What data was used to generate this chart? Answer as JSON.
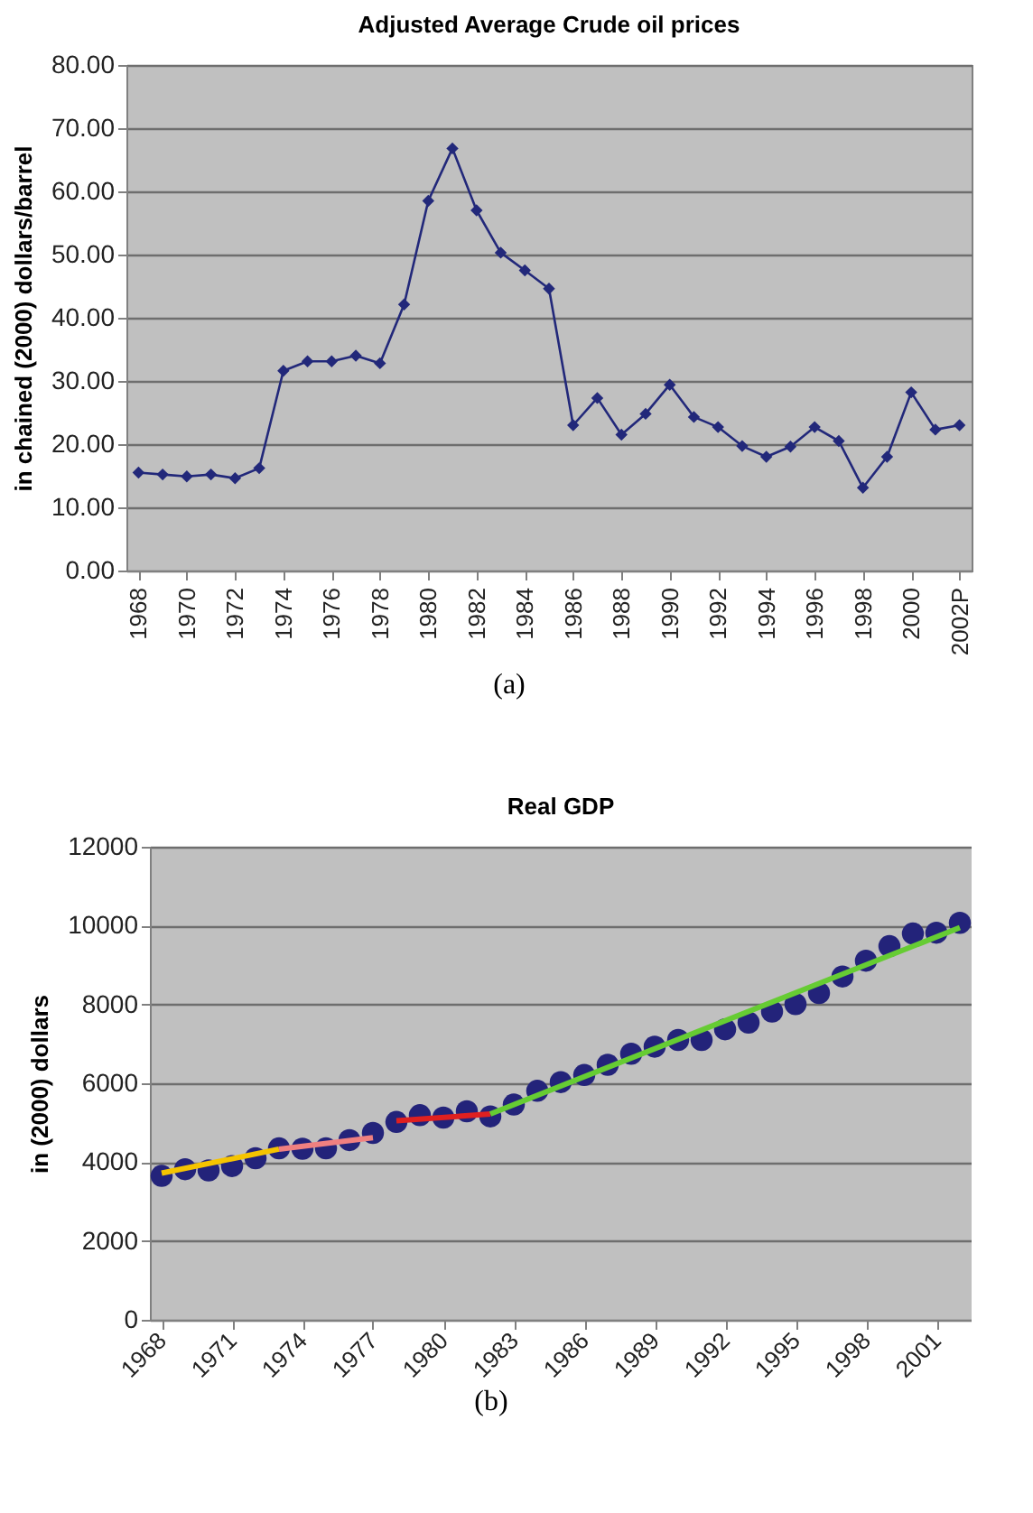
{
  "chart_data": [
    {
      "type": "line",
      "title": "Adjusted Average Crude oil prices",
      "ylabel": "in chained (2000) dollars/barrel",
      "annotations": [
        "(a)"
      ],
      "x": [
        1968,
        1969,
        1970,
        1971,
        1972,
        1973,
        1974,
        1975,
        1976,
        1977,
        1978,
        1979,
        1980,
        1981,
        1982,
        1983,
        1984,
        1985,
        1986,
        1987,
        1988,
        1989,
        1990,
        1991,
        1992,
        1993,
        1994,
        1995,
        1996,
        1997,
        1998,
        1999,
        2000,
        2001,
        2002
      ],
      "series": [
        {
          "color": "#22287a",
          "values": [
            15.5,
            15.2,
            14.9,
            15.2,
            14.6,
            16.2,
            31.6,
            33.1,
            33.1,
            34.0,
            32.8,
            42.1,
            58.5,
            66.8,
            57.0,
            50.3,
            47.5,
            44.6,
            23.0,
            27.3,
            21.5,
            24.8,
            29.4,
            24.3,
            22.7,
            19.7,
            18.0,
            19.6,
            22.7,
            20.5,
            13.1,
            18.0,
            28.2,
            22.3,
            23.0
          ]
        }
      ],
      "marker": "diamond",
      "grid": "y",
      "xlim": [
        1967.5,
        2002.5
      ],
      "xticks": [
        1968,
        1970,
        1972,
        1974,
        1976,
        1978,
        1980,
        1982,
        1984,
        1986,
        1988,
        1990,
        1992,
        1994,
        1996,
        1998,
        2000,
        {
          "value": 2002,
          "label": "2002P"
        }
      ],
      "ylim": [
        0,
        80
      ],
      "yticks": [
        {
          "value": 0,
          "label": "0.00"
        },
        {
          "value": 10,
          "label": "10.00"
        },
        {
          "value": 20,
          "label": "20.00"
        },
        {
          "value": 30,
          "label": "30.00"
        },
        {
          "value": 40,
          "label": "40.00"
        },
        {
          "value": 50,
          "label": "50.00"
        },
        {
          "value": 60,
          "label": "60.00"
        },
        {
          "value": 70,
          "label": "70.00"
        },
        {
          "value": 80,
          "label": "80.00"
        }
      ]
    },
    {
      "type": "scatter",
      "title": "Real GDP",
      "ylabel": "in (2000) dollars",
      "annotations": [
        "(b)"
      ],
      "x": [
        1968,
        1969,
        1970,
        1971,
        1972,
        1973,
        1974,
        1975,
        1976,
        1977,
        1978,
        1979,
        1980,
        1981,
        1982,
        1983,
        1984,
        1985,
        1986,
        1987,
        1988,
        1989,
        1990,
        1991,
        1992,
        1993,
        1994,
        1995,
        1996,
        1997,
        1998,
        1999,
        2000,
        2001,
        2002
      ],
      "series": [
        {
          "color": "#23237a",
          "marker": "circle",
          "values": [
            3650,
            3820,
            3790,
            3900,
            4100,
            4350,
            4340,
            4350,
            4560,
            4740,
            5020,
            5190,
            5130,
            5290,
            5160,
            5460,
            5810,
            6030,
            6210,
            6470,
            6750,
            6930,
            7100,
            7100,
            7370,
            7540,
            7820,
            8010,
            8290,
            8710,
            9110,
            9480,
            9800,
            9820,
            10070
          ]
        },
        {
          "type": "line",
          "color": "#f5c400",
          "marker": "none",
          "x": [
            1968,
            1973
          ],
          "values": [
            3720,
            4330
          ]
        },
        {
          "type": "line",
          "color": "#f08080",
          "marker": "none",
          "x": [
            1973,
            1977
          ],
          "values": [
            4330,
            4620
          ]
        },
        {
          "type": "line",
          "color": "#e02020",
          "marker": "none",
          "x": [
            1978,
            1982
          ],
          "values": [
            5050,
            5220
          ]
        },
        {
          "type": "line",
          "color": "#66cc33",
          "marker": "none",
          "x": [
            1982,
            2002
          ],
          "values": [
            5220,
            9950
          ]
        }
      ],
      "grid": "y",
      "xlim": [
        1967.5,
        2002.5
      ],
      "xticks": [
        1968,
        1971,
        1974,
        1977,
        1980,
        1983,
        1986,
        1989,
        1992,
        1995,
        1998,
        2001
      ],
      "ylim": [
        0,
        12000
      ],
      "yticks": [
        0,
        2000,
        4000,
        6000,
        8000,
        10000,
        12000
      ]
    }
  ]
}
